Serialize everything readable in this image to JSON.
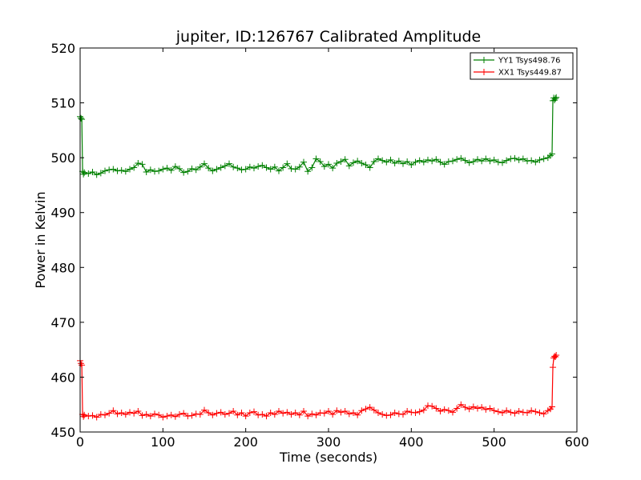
{
  "chart_data": {
    "type": "line",
    "title": "jupiter, ID:126767 Calibrated Amplitude",
    "xlabel": "Time (seconds)",
    "ylabel": "Power in Kelvin",
    "xlim": [
      0,
      600
    ],
    "ylim": [
      450,
      520
    ],
    "xticks": [
      0,
      100,
      200,
      300,
      400,
      500,
      600
    ],
    "yticks": [
      450,
      460,
      470,
      480,
      490,
      500,
      510,
      520
    ],
    "grid": false,
    "legend_position": "top-right",
    "series": [
      {
        "name": "YY1 Tsys498.76",
        "color": "#008000",
        "marker": "+",
        "x": [
          0,
          1,
          2,
          3,
          4,
          5,
          10,
          15,
          20,
          25,
          30,
          35,
          40,
          45,
          50,
          55,
          60,
          65,
          70,
          75,
          80,
          85,
          90,
          95,
          100,
          105,
          110,
          115,
          120,
          125,
          130,
          135,
          140,
          145,
          150,
          155,
          160,
          165,
          170,
          175,
          180,
          185,
          190,
          195,
          200,
          205,
          210,
          215,
          220,
          225,
          230,
          235,
          240,
          245,
          250,
          255,
          260,
          265,
          270,
          275,
          280,
          285,
          290,
          295,
          300,
          305,
          310,
          315,
          320,
          325,
          330,
          335,
          340,
          345,
          350,
          355,
          360,
          365,
          370,
          375,
          380,
          385,
          390,
          395,
          400,
          405,
          410,
          415,
          420,
          425,
          430,
          435,
          440,
          445,
          450,
          455,
          460,
          465,
          470,
          475,
          480,
          485,
          490,
          495,
          500,
          505,
          510,
          515,
          520,
          525,
          530,
          535,
          540,
          545,
          550,
          555,
          560,
          565,
          568,
          570,
          571,
          572,
          573,
          574,
          575
        ],
        "y": [
          507.5,
          507.2,
          507.0,
          497.5,
          497.0,
          497.3,
          497.1,
          497.4,
          496.9,
          497.2,
          497.6,
          497.8,
          497.9,
          497.6,
          497.7,
          497.5,
          497.9,
          498.2,
          499.0,
          498.8,
          497.4,
          497.8,
          497.5,
          497.6,
          497.9,
          498.1,
          497.7,
          498.4,
          498.0,
          497.3,
          497.5,
          498.0,
          497.8,
          498.3,
          498.9,
          498.1,
          497.6,
          497.9,
          498.2,
          498.5,
          498.9,
          498.3,
          498.1,
          497.8,
          497.9,
          498.3,
          498.1,
          498.4,
          498.6,
          498.2,
          497.9,
          498.3,
          497.6,
          498.2,
          498.9,
          498.0,
          497.9,
          498.3,
          499.2,
          497.5,
          498.2,
          499.8,
          499.3,
          498.4,
          498.8,
          498.1,
          499.0,
          499.3,
          499.7,
          498.5,
          499.1,
          499.4,
          499.0,
          498.7,
          498.2,
          499.3,
          499.8,
          499.5,
          499.2,
          499.6,
          499.0,
          499.4,
          498.9,
          499.3,
          498.7,
          499.2,
          499.5,
          499.2,
          499.6,
          499.4,
          499.7,
          499.2,
          498.8,
          499.3,
          499.4,
          499.7,
          499.9,
          499.5,
          499.1,
          499.3,
          499.7,
          499.4,
          499.8,
          499.4,
          499.6,
          499.2,
          499.1,
          499.5,
          499.8,
          499.9,
          499.6,
          499.8,
          499.4,
          499.5,
          499.2,
          499.6,
          499.8,
          500.0,
          500.4,
          500.7,
          510.4,
          510.9,
          510.5,
          510.8,
          511.0
        ]
      },
      {
        "name": "XX1 Tsys449.87",
        "color": "#ff0000",
        "marker": "+",
        "x": [
          0,
          1,
          2,
          3,
          4,
          5,
          10,
          15,
          20,
          25,
          30,
          35,
          40,
          45,
          50,
          55,
          60,
          65,
          70,
          75,
          80,
          85,
          90,
          95,
          100,
          105,
          110,
          115,
          120,
          125,
          130,
          135,
          140,
          145,
          150,
          155,
          160,
          165,
          170,
          175,
          180,
          185,
          190,
          195,
          200,
          205,
          210,
          215,
          220,
          225,
          230,
          235,
          240,
          245,
          250,
          255,
          260,
          265,
          270,
          275,
          280,
          285,
          290,
          295,
          300,
          305,
          310,
          315,
          320,
          325,
          330,
          335,
          340,
          345,
          350,
          355,
          360,
          365,
          370,
          375,
          380,
          385,
          390,
          395,
          400,
          405,
          410,
          415,
          420,
          425,
          430,
          435,
          440,
          445,
          450,
          455,
          460,
          465,
          470,
          475,
          480,
          485,
          490,
          495,
          500,
          505,
          510,
          515,
          520,
          525,
          530,
          535,
          540,
          545,
          550,
          555,
          560,
          565,
          568,
          570,
          571,
          572,
          573,
          574,
          575
        ],
        "y": [
          463.0,
          462.5,
          462.2,
          453.2,
          452.8,
          453.1,
          452.9,
          453.0,
          452.7,
          453.2,
          453.1,
          453.4,
          453.9,
          453.3,
          453.5,
          453.2,
          453.6,
          453.4,
          453.8,
          453.0,
          453.2,
          452.9,
          453.3,
          453.1,
          452.7,
          452.9,
          453.1,
          452.8,
          453.2,
          453.4,
          452.9,
          453.0,
          453.3,
          453.2,
          454.0,
          453.5,
          453.1,
          453.4,
          453.6,
          453.2,
          453.4,
          453.8,
          453.1,
          453.5,
          452.9,
          453.5,
          453.7,
          453.1,
          453.2,
          452.9,
          453.5,
          453.2,
          453.8,
          453.4,
          453.6,
          453.2,
          453.5,
          453.1,
          453.8,
          452.9,
          453.3,
          453.1,
          453.5,
          453.4,
          453.8,
          453.2,
          453.9,
          453.6,
          453.8,
          453.3,
          453.5,
          453.1,
          453.9,
          454.2,
          454.5,
          454.0,
          453.5,
          453.2,
          453.0,
          453.1,
          453.5,
          453.3,
          453.2,
          453.8,
          453.6,
          453.5,
          453.7,
          454.0,
          454.8,
          454.7,
          454.3,
          453.8,
          454.1,
          453.9,
          453.6,
          454.3,
          455.0,
          454.5,
          454.2,
          454.6,
          454.3,
          454.5,
          454.1,
          454.3,
          453.9,
          453.7,
          453.5,
          453.9,
          453.6,
          453.4,
          453.8,
          453.6,
          453.5,
          453.9,
          453.7,
          453.5,
          453.3,
          453.9,
          454.2,
          454.6,
          461.8,
          463.5,
          463.8,
          463.7,
          464.0
        ]
      }
    ]
  }
}
